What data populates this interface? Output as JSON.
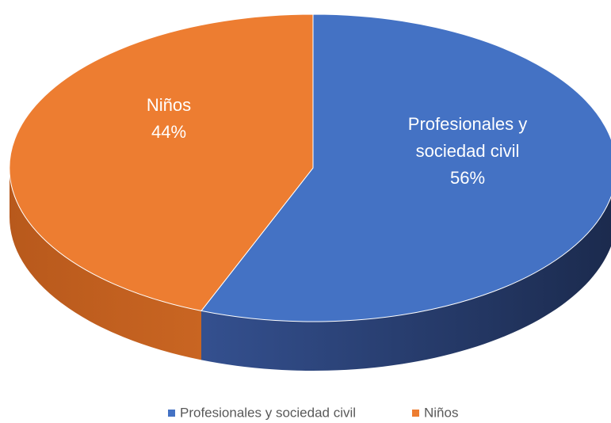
{
  "chart_data": {
    "type": "pie",
    "three_d": true,
    "categories": [
      "Profesionales y sociedad civil",
      "Niños"
    ],
    "values": [
      56,
      44
    ],
    "value_labels": [
      "56%",
      "44%"
    ],
    "colors": [
      "#4472c4",
      "#ed7d31"
    ],
    "legend": "bottom"
  }
}
